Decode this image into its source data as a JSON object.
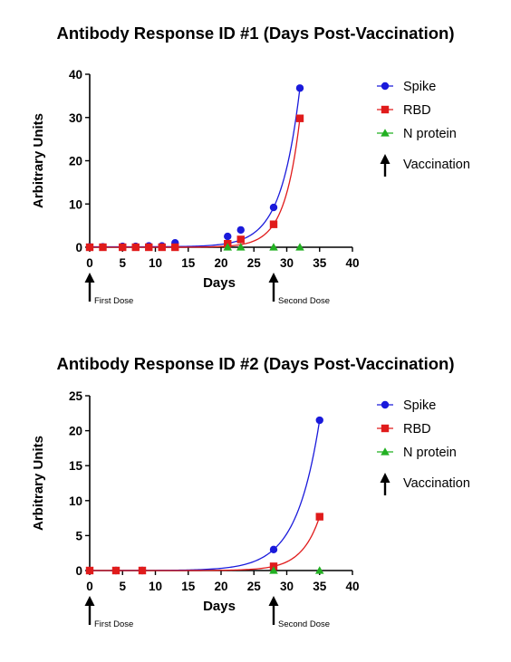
{
  "chart_data": [
    {
      "type": "line",
      "title": "Antibody Response ID #1 (Days Post-Vaccination)",
      "xlabel": "Days",
      "ylabel": "Arbitrary Units",
      "xlim": [
        0,
        40
      ],
      "ylim": [
        0,
        40
      ],
      "xticks": [
        "0",
        "5",
        "10",
        "15",
        "20",
        "25",
        "30",
        "35",
        "40"
      ],
      "yticks": [
        "0",
        "10",
        "20",
        "30",
        "40"
      ],
      "series": [
        {
          "name": "Spike",
          "color": "#1a1adb",
          "marker": "circle",
          "x": [
            0,
            2,
            5,
            7,
            9,
            11,
            13,
            21,
            23,
            28,
            32
          ],
          "y": [
            0.1,
            0.1,
            0.2,
            0.2,
            0.3,
            0.3,
            1.0,
            2.5,
            4.0,
            9.2,
            36.8
          ]
        },
        {
          "name": "RBD",
          "color": "#e01b1b",
          "marker": "square",
          "x": [
            0,
            2,
            5,
            7,
            9,
            11,
            13,
            21,
            23,
            28,
            32
          ],
          "y": [
            0.0,
            0.0,
            0.0,
            0.0,
            0.0,
            0.0,
            0.0,
            0.8,
            1.8,
            5.3,
            29.8
          ]
        },
        {
          "name": "N protein",
          "color": "#22b022",
          "marker": "triangle",
          "x": [
            21,
            23,
            28,
            32
          ],
          "y": [
            0.0,
            0.0,
            0.0,
            0.0
          ]
        }
      ],
      "legend": {
        "position": "right",
        "vaccination_label": "Vaccination"
      },
      "vaccination_markers": [
        {
          "day": 0,
          "label": "First Dose"
        },
        {
          "day": 28,
          "label": "Second Dose"
        }
      ]
    },
    {
      "type": "line",
      "title": "Antibody Response ID #2 (Days Post-Vaccination)",
      "xlabel": "Days",
      "ylabel": "Arbitrary Units",
      "xlim": [
        0,
        40
      ],
      "ylim": [
        0,
        25
      ],
      "xticks": [
        "0",
        "5",
        "10",
        "15",
        "20",
        "25",
        "30",
        "35",
        "40"
      ],
      "yticks": [
        "0",
        "5",
        "10",
        "15",
        "20",
        "25"
      ],
      "series": [
        {
          "name": "Spike",
          "color": "#1a1adb",
          "marker": "circle",
          "x": [
            0,
            4,
            8,
            28,
            35
          ],
          "y": [
            0.0,
            0.0,
            0.0,
            3.0,
            21.5
          ]
        },
        {
          "name": "RBD",
          "color": "#e01b1b",
          "marker": "square",
          "x": [
            0,
            4,
            8,
            28,
            35
          ],
          "y": [
            0.0,
            0.0,
            0.0,
            0.6,
            7.7
          ]
        },
        {
          "name": "N protein",
          "color": "#22b022",
          "marker": "triangle",
          "x": [
            28,
            35
          ],
          "y": [
            0.0,
            0.0
          ]
        }
      ],
      "legend": {
        "position": "right",
        "vaccination_label": "Vaccination"
      },
      "vaccination_markers": [
        {
          "day": 0,
          "label": "First Dose"
        },
        {
          "day": 28,
          "label": "Second Dose"
        }
      ]
    }
  ]
}
